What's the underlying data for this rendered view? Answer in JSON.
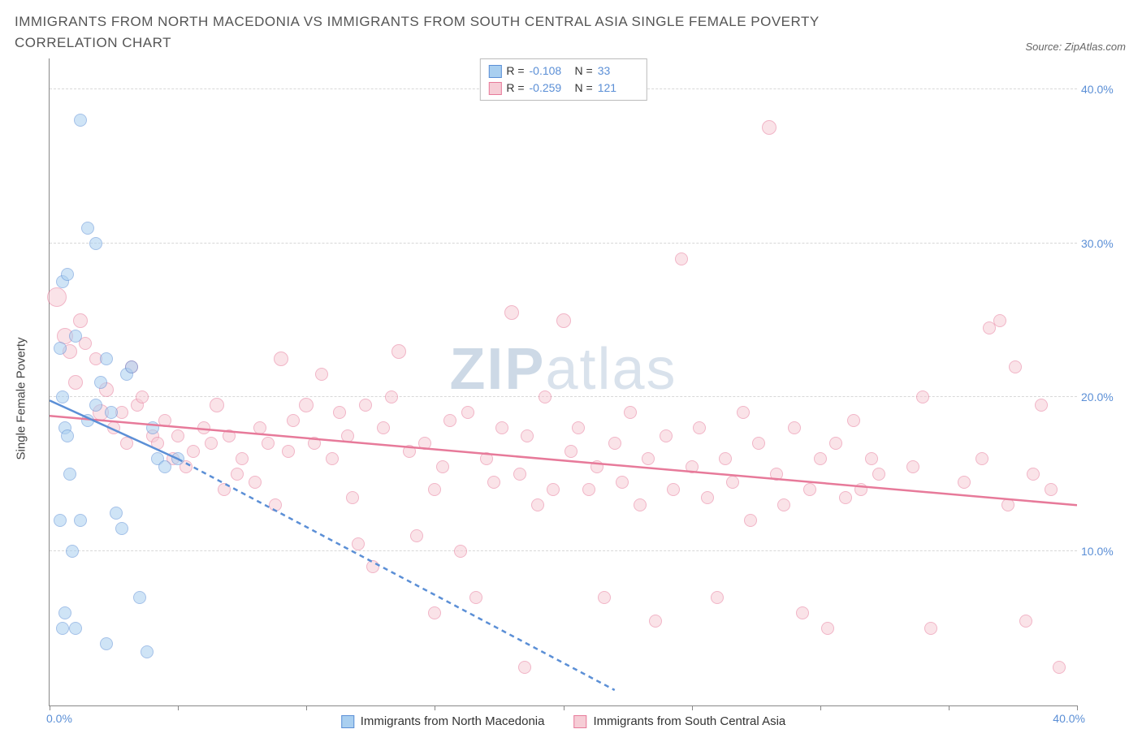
{
  "header": {
    "title": "IMMIGRANTS FROM NORTH MACEDONIA VS IMMIGRANTS FROM SOUTH CENTRAL ASIA SINGLE FEMALE POVERTY CORRELATION CHART",
    "source_prefix": "Source: ",
    "source_name": "ZipAtlas.com"
  },
  "watermark": {
    "zip": "ZIP",
    "atlas": "atlas"
  },
  "chart": {
    "type": "scatter",
    "xlim": [
      0,
      40
    ],
    "ylim": [
      0,
      42
    ],
    "x_end_label": "40.0%",
    "x_start_label": "0.0%",
    "ylabel": "Single Female Poverty",
    "yticks": [
      10,
      20,
      30,
      40
    ],
    "ytick_labels": [
      "10.0%",
      "20.0%",
      "30.0%",
      "40.0%"
    ],
    "xtick_positions": [
      0,
      5,
      10,
      15,
      20,
      25,
      30,
      35,
      40
    ],
    "grid_color": "#d8d8d8",
    "axis_color": "#888888",
    "tick_label_color": "#5b8fd6",
    "background_color": "#ffffff",
    "marker_radius_range": [
      7,
      12
    ],
    "marker_opacity": 0.55,
    "trend_line_width": 2.5,
    "series": [
      {
        "key": "nm",
        "label": "Immigrants from North Macedonia",
        "color_fill": "#a9cff0",
        "color_stroke": "#5b8fd6",
        "trend_solid": {
          "x1": 0,
          "y1": 19.8,
          "x2": 5,
          "y2": 16.0
        },
        "trend_dash": {
          "x1": 5,
          "y1": 16.0,
          "x2": 22,
          "y2": 1.0
        },
        "R": "-0.108",
        "N": "33",
        "points": [
          [
            0.4,
            23.2,
            8
          ],
          [
            0.5,
            27.5,
            8
          ],
          [
            0.7,
            28.0,
            8
          ],
          [
            0.6,
            18.0,
            8
          ],
          [
            1.2,
            38.0,
            8
          ],
          [
            1.5,
            31.0,
            8
          ],
          [
            1.8,
            30.0,
            8
          ],
          [
            1.0,
            24.0,
            8
          ],
          [
            0.5,
            20.0,
            8
          ],
          [
            0.7,
            17.5,
            8
          ],
          [
            0.8,
            15.0,
            8
          ],
          [
            0.9,
            10.0,
            8
          ],
          [
            0.4,
            12.0,
            8
          ],
          [
            0.6,
            6.0,
            8
          ],
          [
            0.5,
            5.0,
            8
          ],
          [
            1.2,
            12.0,
            8
          ],
          [
            1.5,
            18.5,
            8
          ],
          [
            1.8,
            19.5,
            8
          ],
          [
            2.0,
            21.0,
            8
          ],
          [
            2.2,
            22.5,
            8
          ],
          [
            2.4,
            19.0,
            8
          ],
          [
            2.6,
            12.5,
            8
          ],
          [
            2.8,
            11.5,
            8
          ],
          [
            3.0,
            21.5,
            8
          ],
          [
            3.2,
            22.0,
            8
          ],
          [
            3.5,
            7.0,
            8
          ],
          [
            3.8,
            3.5,
            8
          ],
          [
            4.0,
            18.0,
            8
          ],
          [
            4.2,
            16.0,
            8
          ],
          [
            4.5,
            15.5,
            8
          ],
          [
            5.0,
            16.0,
            8
          ],
          [
            1.0,
            5.0,
            8
          ],
          [
            2.2,
            4.0,
            8
          ]
        ]
      },
      {
        "key": "sca",
        "label": "Immigrants from South Central Asia",
        "color_fill": "#f6cdd6",
        "color_stroke": "#e77a9a",
        "trend_solid": {
          "x1": 0,
          "y1": 18.8,
          "x2": 40,
          "y2": 13.0
        },
        "trend_dash": null,
        "R": "-0.259",
        "N": "121",
        "points": [
          [
            0.3,
            26.5,
            12
          ],
          [
            0.6,
            24.0,
            10
          ],
          [
            0.8,
            23.0,
            9
          ],
          [
            1.0,
            21.0,
            9
          ],
          [
            1.2,
            25.0,
            9
          ],
          [
            1.4,
            23.5,
            8
          ],
          [
            1.8,
            22.5,
            8
          ],
          [
            2.0,
            19.0,
            10
          ],
          [
            2.2,
            20.5,
            9
          ],
          [
            2.5,
            18.0,
            8
          ],
          [
            2.8,
            19.0,
            8
          ],
          [
            3.0,
            17.0,
            8
          ],
          [
            3.2,
            22.0,
            8
          ],
          [
            3.4,
            19.5,
            8
          ],
          [
            3.6,
            20.0,
            8
          ],
          [
            4.0,
            17.5,
            8
          ],
          [
            4.2,
            17.0,
            8
          ],
          [
            4.5,
            18.5,
            8
          ],
          [
            4.8,
            16.0,
            8
          ],
          [
            5.0,
            17.5,
            8
          ],
          [
            5.3,
            15.5,
            8
          ],
          [
            5.6,
            16.5,
            8
          ],
          [
            6.0,
            18.0,
            8
          ],
          [
            6.3,
            17.0,
            8
          ],
          [
            6.5,
            19.5,
            9
          ],
          [
            7.0,
            17.5,
            8
          ],
          [
            7.3,
            15.0,
            8
          ],
          [
            7.5,
            16.0,
            8
          ],
          [
            8.0,
            14.5,
            8
          ],
          [
            8.2,
            18.0,
            8
          ],
          [
            8.5,
            17.0,
            8
          ],
          [
            9.0,
            22.5,
            9
          ],
          [
            9.3,
            16.5,
            8
          ],
          [
            9.5,
            18.5,
            8
          ],
          [
            10.0,
            19.5,
            9
          ],
          [
            10.3,
            17.0,
            8
          ],
          [
            10.6,
            21.5,
            8
          ],
          [
            11.0,
            16.0,
            8
          ],
          [
            11.3,
            19.0,
            8
          ],
          [
            11.6,
            17.5,
            8
          ],
          [
            12.0,
            10.5,
            8
          ],
          [
            12.3,
            19.5,
            8
          ],
          [
            12.6,
            9.0,
            8
          ],
          [
            13.0,
            18.0,
            8
          ],
          [
            13.3,
            20.0,
            8
          ],
          [
            13.6,
            23.0,
            9
          ],
          [
            14.0,
            16.5,
            8
          ],
          [
            14.3,
            11.0,
            8
          ],
          [
            14.6,
            17.0,
            8
          ],
          [
            15.0,
            14.0,
            8
          ],
          [
            15.3,
            15.5,
            8
          ],
          [
            15.6,
            18.5,
            8
          ],
          [
            16.0,
            10.0,
            8
          ],
          [
            16.3,
            19.0,
            8
          ],
          [
            16.6,
            7.0,
            8
          ],
          [
            17.0,
            16.0,
            8
          ],
          [
            17.3,
            14.5,
            8
          ],
          [
            17.6,
            18.0,
            8
          ],
          [
            18.0,
            25.5,
            9
          ],
          [
            18.3,
            15.0,
            8
          ],
          [
            18.6,
            17.5,
            8
          ],
          [
            19.0,
            13.0,
            8
          ],
          [
            19.3,
            20.0,
            8
          ],
          [
            19.6,
            14.0,
            8
          ],
          [
            20.0,
            25.0,
            9
          ],
          [
            20.3,
            16.5,
            8
          ],
          [
            20.6,
            18.0,
            8
          ],
          [
            21.0,
            14.0,
            8
          ],
          [
            21.3,
            15.5,
            8
          ],
          [
            21.6,
            7.0,
            8
          ],
          [
            22.0,
            17.0,
            8
          ],
          [
            22.3,
            14.5,
            8
          ],
          [
            22.6,
            19.0,
            8
          ],
          [
            23.0,
            13.0,
            8
          ],
          [
            23.3,
            16.0,
            8
          ],
          [
            23.6,
            5.5,
            8
          ],
          [
            24.0,
            17.5,
            8
          ],
          [
            24.3,
            14.0,
            8
          ],
          [
            24.6,
            29.0,
            8
          ],
          [
            25.0,
            15.5,
            8
          ],
          [
            25.3,
            18.0,
            8
          ],
          [
            25.6,
            13.5,
            8
          ],
          [
            26.0,
            7.0,
            8
          ],
          [
            26.3,
            16.0,
            8
          ],
          [
            26.6,
            14.5,
            8
          ],
          [
            27.0,
            19.0,
            8
          ],
          [
            27.3,
            12.0,
            8
          ],
          [
            27.6,
            17.0,
            8
          ],
          [
            28.0,
            37.5,
            9
          ],
          [
            28.3,
            15.0,
            8
          ],
          [
            28.6,
            13.0,
            8
          ],
          [
            29.0,
            18.0,
            8
          ],
          [
            29.3,
            6.0,
            8
          ],
          [
            29.6,
            14.0,
            8
          ],
          [
            30.0,
            16.0,
            8
          ],
          [
            30.3,
            5.0,
            8
          ],
          [
            30.6,
            17.0,
            8
          ],
          [
            31.0,
            13.5,
            8
          ],
          [
            31.3,
            18.5,
            8
          ],
          [
            31.6,
            14.0,
            8
          ],
          [
            32.0,
            16.0,
            8
          ],
          [
            32.3,
            15.0,
            8
          ],
          [
            33.6,
            15.5,
            8
          ],
          [
            34.0,
            20.0,
            8
          ],
          [
            34.3,
            5.0,
            8
          ],
          [
            35.6,
            14.5,
            8
          ],
          [
            36.3,
            16.0,
            8
          ],
          [
            36.6,
            24.5,
            8
          ],
          [
            37.0,
            25.0,
            8
          ],
          [
            37.3,
            13.0,
            8
          ],
          [
            37.6,
            22.0,
            8
          ],
          [
            38.0,
            5.5,
            8
          ],
          [
            38.3,
            15.0,
            8
          ],
          [
            38.6,
            19.5,
            8
          ],
          [
            39.0,
            14.0,
            8
          ],
          [
            39.3,
            2.5,
            8
          ],
          [
            18.5,
            2.5,
            8
          ],
          [
            15.0,
            6.0,
            8
          ],
          [
            11.8,
            13.5,
            8
          ],
          [
            8.8,
            13.0,
            8
          ],
          [
            6.8,
            14.0,
            8
          ]
        ]
      }
    ]
  },
  "legend_top": {
    "R_label": "R =",
    "N_label": "N ="
  }
}
